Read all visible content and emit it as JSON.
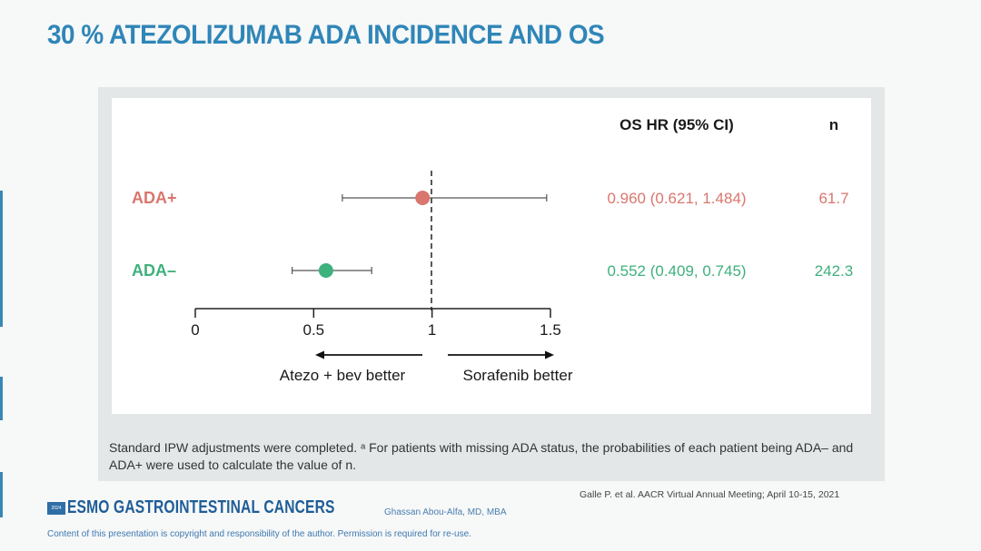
{
  "slide": {
    "title": "30 % ATEZOLIZUMAB ADA INCIDENCE AND OS",
    "footnote": "Standard IPW adjustments were completed. ᵃ For patients with missing ADA status, the probabilities of each patient being ADA– and ADA+ were used to calculate the value of n.",
    "citation": "Galle P. et al. AACR Virtual Annual Meeting; April 10-15, 2021",
    "logo_mark": "2024",
    "logo_text": "ESMO GASTROINTESTINAL CANCERS",
    "author": "Ghassan Abou-Alfa, MD, MBA",
    "copyright": "Content of this presentation is copyright and responsibility of the author. Permission is required for re-use."
  },
  "colors": {
    "title": "#2f86b8",
    "ada_pos": "#d9766e",
    "ada_neg": "#3fb17c",
    "panel": "#e3e7e8"
  },
  "chart_data": {
    "type": "forest",
    "columns": {
      "hr": "OS HR (95% CI)",
      "n": "n"
    },
    "x_ticks": [
      0,
      0.5,
      1,
      1.5
    ],
    "x_tick_labels": [
      "0",
      "0.5",
      "1",
      "1.5"
    ],
    "xlim": [
      0,
      1.5
    ],
    "reference_line": 1,
    "rows": [
      {
        "label": "ADA+",
        "hr": 0.96,
        "ci_low": 0.621,
        "ci_high": 1.484,
        "hr_text": "0.960 (0.621, 1.484)",
        "n": "61.7",
        "color": "#d9766e"
      },
      {
        "label": "ADA–",
        "hr": 0.552,
        "ci_low": 0.409,
        "ci_high": 0.745,
        "hr_text": "0.552 (0.409, 0.745)",
        "n": "242.3",
        "color": "#3fb17c"
      }
    ],
    "direction_labels": {
      "left": "Atezo + bev better",
      "right": "Sorafenib better"
    }
  }
}
